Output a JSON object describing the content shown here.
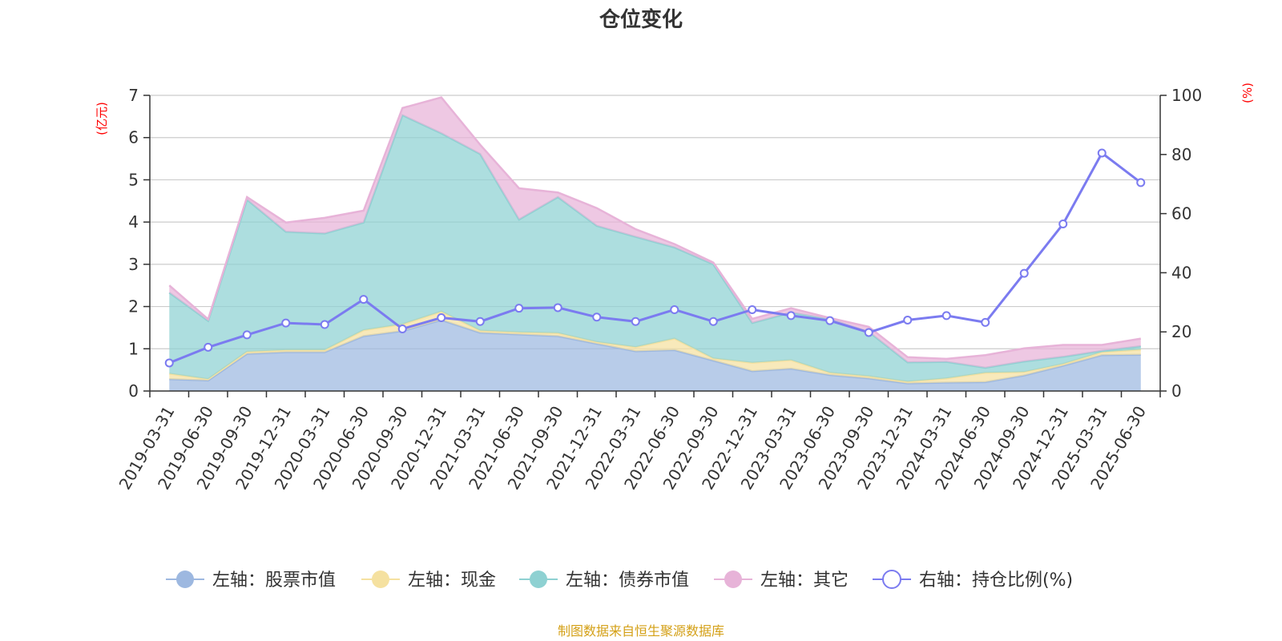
{
  "chart_data": {
    "type": "area",
    "title": "仓位变化",
    "left_axis": {
      "unit": "(亿元)",
      "ylim": [
        0,
        7
      ],
      "ticks": [
        "0",
        "1",
        "2",
        "3",
        "4",
        "5",
        "6",
        "7"
      ]
    },
    "right_axis": {
      "unit": "(%)",
      "ylim": [
        0,
        100
      ],
      "ticks": [
        "0",
        "20",
        "40",
        "60",
        "80",
        "100"
      ]
    },
    "categories": [
      "2019-03-31",
      "2019-06-30",
      "2019-09-30",
      "2019-12-31",
      "2020-03-31",
      "2020-06-30",
      "2020-09-30",
      "2020-12-31",
      "2021-03-31",
      "2021-06-30",
      "2021-09-30",
      "2021-12-31",
      "2022-03-31",
      "2022-06-30",
      "2022-09-30",
      "2022-12-31",
      "2023-03-31",
      "2023-06-30",
      "2023-09-30",
      "2023-12-31",
      "2024-03-31",
      "2024-06-30",
      "2024-09-30",
      "2024-12-31",
      "2025-03-31",
      "2025-06-30"
    ],
    "series": [
      {
        "name": "左轴：股票市值",
        "axis": "left",
        "stack": true,
        "color": "#9db8e0",
        "values": [
          0.28,
          0.25,
          0.88,
          0.92,
          0.92,
          1.3,
          1.42,
          1.68,
          1.38,
          1.34,
          1.3,
          1.12,
          0.94,
          0.97,
          0.72,
          0.47,
          0.53,
          0.38,
          0.3,
          0.18,
          0.2,
          0.21,
          0.37,
          0.6,
          0.85,
          0.86
        ]
      },
      {
        "name": "左轴：现金",
        "axis": "left",
        "stack": true,
        "color": "#f5e1a0",
        "values": [
          0.13,
          0.03,
          0.05,
          0.05,
          0.05,
          0.14,
          0.16,
          0.2,
          0.05,
          0.05,
          0.07,
          0.04,
          0.1,
          0.27,
          0.05,
          0.2,
          0.2,
          0.05,
          0.05,
          0.04,
          0.1,
          0.22,
          0.08,
          0.04,
          0.07,
          0.12
        ]
      },
      {
        "name": "左轴：债券市值",
        "axis": "left",
        "stack": true,
        "color": "#8ed1d2",
        "values": [
          1.92,
          1.38,
          3.6,
          2.8,
          2.76,
          2.55,
          4.95,
          4.22,
          4.18,
          2.67,
          3.22,
          2.75,
          2.61,
          2.16,
          2.23,
          0.94,
          1.13,
          1.27,
          1.05,
          0.46,
          0.39,
          0.12,
          0.25,
          0.17,
          0.03,
          0.08
        ]
      },
      {
        "name": "左轴：其它",
        "axis": "left",
        "stack": true,
        "color": "#e7b3d8",
        "values": [
          0.17,
          0.04,
          0.06,
          0.22,
          0.37,
          0.28,
          0.17,
          0.85,
          0.22,
          0.74,
          0.11,
          0.42,
          0.18,
          0.08,
          0.04,
          0.1,
          0.1,
          0.03,
          0.12,
          0.12,
          0.07,
          0.3,
          0.31,
          0.28,
          0.14,
          0.18
        ]
      },
      {
        "name": "右轴：持仓比例(%)",
        "axis": "right",
        "stack": false,
        "color": "#7b7bf0",
        "values": [
          9.5,
          14.8,
          19,
          23,
          22.5,
          31,
          21,
          24.8,
          23.5,
          28,
          28.2,
          25,
          23.5,
          27.5,
          23.5,
          27.5,
          25.5,
          23.8,
          19.8,
          24,
          25.5,
          23.2,
          39.8,
          56.5,
          80.5,
          70.5
        ]
      }
    ],
    "legend_position": "bottom",
    "grid": true,
    "source": "制图数据来自恒生聚源数据库"
  },
  "colors": {
    "left_unit": "#ff0000",
    "right_unit": "#ff0000",
    "source": "#d4a017",
    "axis": "#333333",
    "grid": "#cccccc"
  }
}
